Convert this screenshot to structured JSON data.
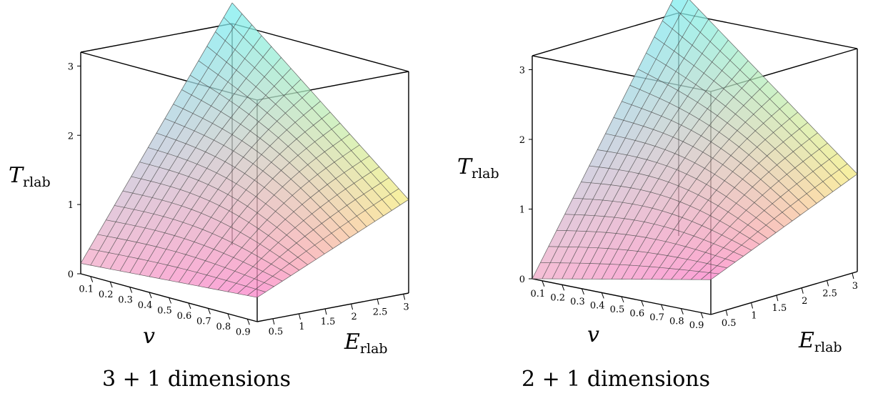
{
  "chart_data": [
    {
      "type": "surface3d",
      "title": "3 + 1 dimensions",
      "zlabel": "T",
      "zlabel_sub": "rlab",
      "xlabel": "v",
      "ylabel": "E",
      "ylabel_sub": "rlab",
      "x_ticks": [
        "0.1",
        "0.2",
        "0.3",
        "0.4",
        "0.5",
        "0.6",
        "0.7",
        "0.8",
        "0.9"
      ],
      "y_ticks": [
        "0.5",
        "1",
        "1.5",
        "2",
        "2.5",
        "3"
      ],
      "z_ticks": [
        "0",
        "1",
        "2",
        "3"
      ],
      "xlim": [
        0.05,
        0.95
      ],
      "ylim": [
        0.2,
        3.1
      ],
      "zlim": [
        0,
        3.2
      ],
      "surface_corners": {
        "v_low_E_low": 0.15,
        "v_low_E_high": 3.5,
        "v_high_E_low": 0.35,
        "v_high_E_high": 1.35
      }
    },
    {
      "type": "surface3d",
      "title": "2 + 1 dimensions",
      "zlabel": "T",
      "zlabel_sub": "rlab",
      "xlabel": "v",
      "ylabel": "E",
      "ylabel_sub": "rlab",
      "x_ticks": [
        "0.1",
        "0.2",
        "0.3",
        "0.4",
        "0.5",
        "0.6",
        "0.7",
        "0.8",
        "0.9"
      ],
      "y_ticks": [
        "0.5",
        "1",
        "1.5",
        "2",
        "2.5",
        "3"
      ],
      "z_ticks": [
        "0",
        "1",
        "2",
        "3"
      ],
      "xlim": [
        0.05,
        0.95
      ],
      "ylim": [
        0.2,
        3.1
      ],
      "zlim": [
        0,
        3.2
      ],
      "surface_corners": {
        "v_low_E_low": 0.0,
        "v_low_E_high": 3.55,
        "v_high_E_low": 0.5,
        "v_high_E_high": 1.4
      }
    }
  ]
}
